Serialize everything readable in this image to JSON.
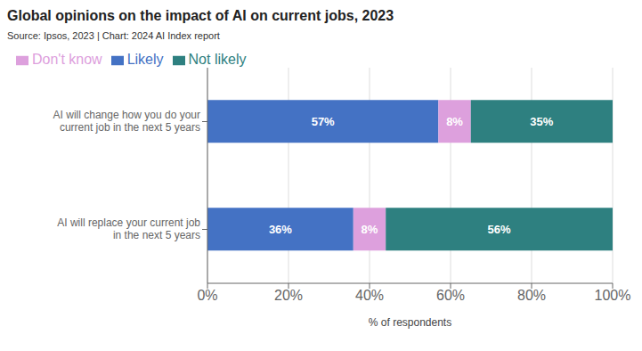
{
  "chart_data": {
    "type": "bar",
    "title": "Global opinions on the impact of AI on current jobs, 2023",
    "subtitle": "Source: Ipsos, 2023 | Chart: 2024 AI Index report",
    "categories": [
      "AI will change how you do your\ncurrent job in the next 5 years",
      "AI will replace your current job\nin the next 5 years"
    ],
    "series": [
      {
        "name": "Likely",
        "color": "#4472C4",
        "values": [
          57,
          36
        ],
        "value_labels": [
          "57%",
          "36%"
        ]
      },
      {
        "name": "Don't know",
        "color": "#DDA0DD",
        "values": [
          8,
          8
        ],
        "value_labels": [
          "8%",
          "8%"
        ]
      },
      {
        "name": "Not likely",
        "color": "#2E8080",
        "values": [
          35,
          56
        ],
        "value_labels": [
          "35%",
          "56%"
        ]
      }
    ],
    "xlabel": "% of respondents",
    "xlim": [
      0,
      100
    ],
    "xticks": [
      {
        "value": 0,
        "label": "0%"
      },
      {
        "value": 20,
        "label": "20%"
      },
      {
        "value": 40,
        "label": "40%"
      },
      {
        "value": 60,
        "label": "60%"
      },
      {
        "value": 80,
        "label": "80%"
      },
      {
        "value": 100,
        "label": "100%"
      }
    ],
    "orientation": "horizontal",
    "stacked": true,
    "data_labels": true,
    "grid": true,
    "legend": "upper left"
  }
}
